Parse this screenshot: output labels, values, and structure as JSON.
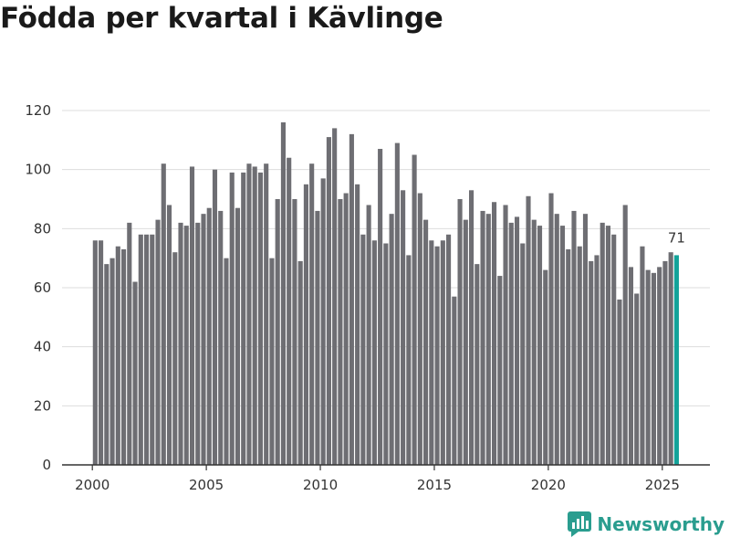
{
  "title": "Födda per kvartal i Kävlinge",
  "brand": {
    "name": "Newsworthy",
    "icon": "newsworthy-logo-icon"
  },
  "colors": {
    "bar": "#6e6e73",
    "highlight": "#13a39a",
    "grid": "#dddddd",
    "axis": "#333333",
    "brand": "#2a9d8f"
  },
  "chart_data": {
    "type": "bar",
    "title": "Födda per kvartal i Kävlinge",
    "xlabel": "",
    "ylabel": "",
    "ylim": [
      0,
      120
    ],
    "yticks": [
      0,
      20,
      40,
      60,
      80,
      100,
      120
    ],
    "xticks": [
      "2000",
      "2005",
      "2010",
      "2015",
      "2020",
      "2025"
    ],
    "start_year": 2000,
    "periods_per_year": 4,
    "highlight_last": true,
    "last_value_label": "71",
    "grid": true,
    "legend": "none",
    "values": [
      76,
      76,
      68,
      70,
      74,
      73,
      82,
      62,
      78,
      78,
      78,
      83,
      102,
      88,
      72,
      82,
      81,
      101,
      82,
      85,
      87,
      100,
      86,
      70,
      99,
      87,
      99,
      102,
      101,
      99,
      102,
      70,
      90,
      116,
      104,
      90,
      69,
      95,
      102,
      86,
      97,
      111,
      114,
      90,
      92,
      112,
      95,
      78,
      88,
      76,
      107,
      75,
      85,
      109,
      93,
      71,
      105,
      92,
      83,
      76,
      74,
      76,
      78,
      57,
      90,
      83,
      93,
      68,
      86,
      85,
      89,
      64,
      88,
      82,
      84,
      75,
      91,
      83,
      81,
      66,
      92,
      85,
      81,
      73,
      86,
      74,
      85,
      69,
      71,
      82,
      81,
      78,
      56,
      88,
      67,
      58,
      74,
      66,
      65,
      67,
      69,
      72,
      71
    ]
  }
}
